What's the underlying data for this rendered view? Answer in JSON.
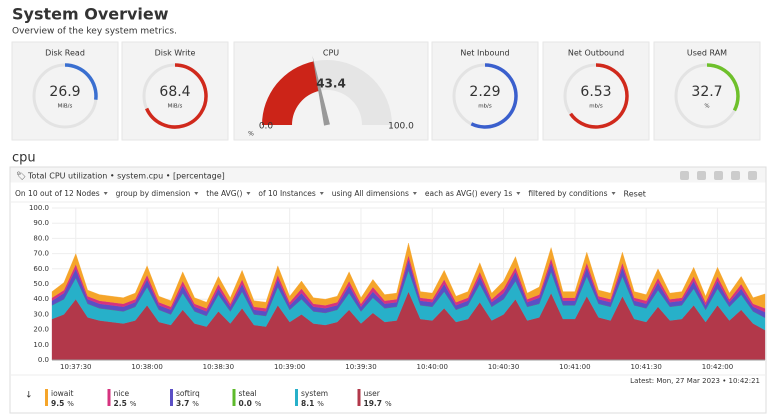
{
  "header": {
    "title": "System Overview",
    "subtitle": "Overview of the key system metrics."
  },
  "gauges": [
    {
      "label": "Disk Read",
      "value": 26.9,
      "unit": "MiB/s",
      "color": "#3a6fd0",
      "range": [
        0,
        100
      ],
      "style": "ring"
    },
    {
      "label": "Disk Write",
      "value": 68.4,
      "unit": "MiB/s",
      "color": "#d0291c",
      "range": [
        0,
        100
      ],
      "style": "ring"
    },
    {
      "label": "CPU",
      "value": 43.4,
      "unit": "%",
      "color": "#cc2418",
      "range": [
        {
          "value": 0,
          "label": "0.0"
        },
        {
          "value": 100,
          "label": "100.0"
        }
      ],
      "style": "semicircle"
    },
    {
      "label": "Net Inbound",
      "value": 2.29,
      "unit": "mb/s",
      "color": "#3a5fcd",
      "range": [
        0,
        4
      ],
      "style": "ring"
    },
    {
      "label": "Net Outbound",
      "value": 6.53,
      "unit": "mb/s",
      "color": "#d0291c",
      "range": [
        0,
        10
      ],
      "style": "ring"
    },
    {
      "label": "Used RAM",
      "value": 32.7,
      "unit": "%",
      "color": "#6ec02b",
      "range": [
        0,
        100
      ],
      "style": "ring"
    }
  ],
  "section": "cpu",
  "chart_data": {
    "type": "stacked-area",
    "title": "Total CPU utilization • system.cpu • [percentage]",
    "filters": [
      "On 10 out of 12 Nodes",
      "group by dimension",
      "the AVG()",
      "of 10 Instances",
      "using All dimensions",
      "each as AVG() every 1s",
      "filtered by conditions"
    ],
    "reset": "Reset",
    "unit": "%",
    "latest": "Latest: Mon, 27 Mar 2023 • 10:42:21",
    "ylim": [
      0,
      100
    ],
    "yticks": [
      {
        "value": 0,
        "label": "0.0"
      },
      {
        "value": 10,
        "label": "10.0"
      },
      {
        "value": 20,
        "label": "20.0"
      },
      {
        "value": 30,
        "label": "30.0"
      },
      {
        "value": 40,
        "label": "40.0"
      },
      {
        "value": 50,
        "label": "50.0"
      },
      {
        "value": 60,
        "label": "60.0"
      },
      {
        "value": 70,
        "label": "70.0"
      },
      {
        "value": 80,
        "label": "80.0"
      },
      {
        "value": 90,
        "label": "90.0"
      },
      {
        "value": 100,
        "label": "100.0"
      }
    ],
    "xlim": [
      "10:37:20",
      "10:42:20"
    ],
    "xticks": [
      "10:37:30",
      "10:38:00",
      "10:38:30",
      "10:39:00",
      "10:39:30",
      "10:40:00",
      "10:40:30",
      "10:41:00",
      "10:41:30",
      "10:42:00"
    ],
    "grid": true,
    "x": [
      "10:37:20",
      "10:37:25",
      "10:37:30",
      "10:37:35",
      "10:37:40",
      "10:37:45",
      "10:37:50",
      "10:37:55",
      "10:38:00",
      "10:38:05",
      "10:38:10",
      "10:38:15",
      "10:38:20",
      "10:38:25",
      "10:38:30",
      "10:38:35",
      "10:38:40",
      "10:38:45",
      "10:38:50",
      "10:38:55",
      "10:39:00",
      "10:39:05",
      "10:39:10",
      "10:39:15",
      "10:39:20",
      "10:39:25",
      "10:39:30",
      "10:39:35",
      "10:39:40",
      "10:39:45",
      "10:39:50",
      "10:39:55",
      "10:40:00",
      "10:40:05",
      "10:40:10",
      "10:40:15",
      "10:40:20",
      "10:40:25",
      "10:40:30",
      "10:40:35",
      "10:40:40",
      "10:40:45",
      "10:40:50",
      "10:40:55",
      "10:41:00",
      "10:41:05",
      "10:41:10",
      "10:41:15",
      "10:41:20",
      "10:41:25",
      "10:41:30",
      "10:41:35",
      "10:41:40",
      "10:41:45",
      "10:41:50",
      "10:41:55",
      "10:42:00",
      "10:42:05",
      "10:42:10",
      "10:42:15",
      "10:42:20"
    ],
    "series": [
      {
        "name": "iowait",
        "color": "#f5a52a",
        "latest": 9.5,
        "values": [
          4,
          5,
          7,
          4,
          4,
          4,
          4,
          4,
          6,
          4,
          4,
          6,
          4,
          4,
          5,
          4,
          6,
          4,
          4,
          6,
          4,
          5,
          4,
          4,
          4,
          6,
          4,
          5,
          4,
          4,
          8,
          4,
          4,
          6,
          4,
          4,
          6,
          4,
          5,
          7,
          4,
          5,
          7,
          4,
          4,
          7,
          4,
          4,
          7,
          4,
          4,
          6,
          4,
          4,
          6,
          4,
          6,
          4,
          5,
          4,
          9.5
        ]
      },
      {
        "name": "nice",
        "color": "#d6337f",
        "latest": 2.5,
        "values": [
          2,
          2,
          3,
          2,
          2,
          2,
          2,
          2,
          3,
          2,
          2,
          3,
          2,
          2,
          3,
          2,
          3,
          2,
          2,
          3,
          2,
          3,
          2,
          2,
          2,
          3,
          2,
          3,
          2,
          2,
          3,
          2,
          2,
          3,
          2,
          2,
          3,
          2,
          3,
          3,
          2,
          2,
          3,
          2,
          2,
          3,
          2,
          2,
          3,
          2,
          2,
          3,
          2,
          2,
          3,
          2,
          3,
          2,
          3,
          2,
          2.5
        ]
      },
      {
        "name": "softirq",
        "color": "#5b4fc5",
        "latest": 3.7,
        "values": [
          3,
          4,
          6,
          3,
          3,
          3,
          3,
          3,
          5,
          3,
          3,
          5,
          3,
          3,
          4,
          3,
          5,
          3,
          3,
          5,
          3,
          4,
          3,
          3,
          3,
          5,
          3,
          4,
          3,
          3,
          7,
          3,
          3,
          5,
          3,
          3,
          5,
          3,
          4,
          6,
          3,
          4,
          6,
          3,
          3,
          6,
          3,
          3,
          6,
          3,
          3,
          5,
          3,
          3,
          5,
          3,
          5,
          3,
          4,
          3,
          3.7
        ]
      },
      {
        "name": "steal",
        "color": "#5dba2b",
        "latest": {
          "value": 0,
          "label": "0.0"
        },
        "values": [
          0,
          0,
          0,
          0,
          0,
          0,
          0,
          0,
          0,
          0,
          0,
          0,
          0,
          0,
          0,
          0,
          0,
          0,
          0,
          0,
          0,
          0,
          0,
          0,
          0,
          0,
          0,
          0,
          0,
          0,
          0,
          0,
          0,
          0,
          0,
          0,
          0,
          0,
          0,
          0,
          0,
          0,
          0,
          0,
          0,
          0,
          0,
          0,
          0,
          0,
          0,
          0,
          0,
          0,
          0,
          0,
          0,
          0,
          0,
          0,
          0
        ]
      },
      {
        "name": "system",
        "color": "#27b0c9",
        "latest": 8.1,
        "values": [
          9,
          10,
          14,
          9,
          8,
          8,
          8,
          9,
          12,
          8,
          7,
          11,
          8,
          7,
          11,
          8,
          11,
          7,
          7,
          12,
          8,
          10,
          8,
          8,
          8,
          11,
          8,
          10,
          9,
          9,
          14,
          9,
          9,
          11,
          8,
          9,
          12,
          9,
          10,
          12,
          9,
          9,
          14,
          9,
          9,
          13,
          9,
          9,
          13,
          9,
          9,
          11,
          9,
          9,
          11,
          8,
          11,
          9,
          10,
          8,
          8.1
        ]
      },
      {
        "name": "user",
        "color": "#b2384a",
        "latest": 19.7,
        "values": [
          27,
          30,
          40,
          28,
          26,
          25,
          24,
          26,
          36,
          25,
          23,
          33,
          24,
          22,
          32,
          24,
          34,
          23,
          22,
          36,
          25,
          30,
          24,
          23,
          25,
          33,
          24,
          31,
          25,
          26,
          45,
          27,
          26,
          34,
          25,
          27,
          38,
          26,
          30,
          40,
          26,
          28,
          44,
          27,
          27,
          42,
          28,
          26,
          42,
          27,
          25,
          35,
          26,
          27,
          36,
          25,
          36,
          26,
          33,
          24,
          19.7
        ]
      }
    ]
  }
}
